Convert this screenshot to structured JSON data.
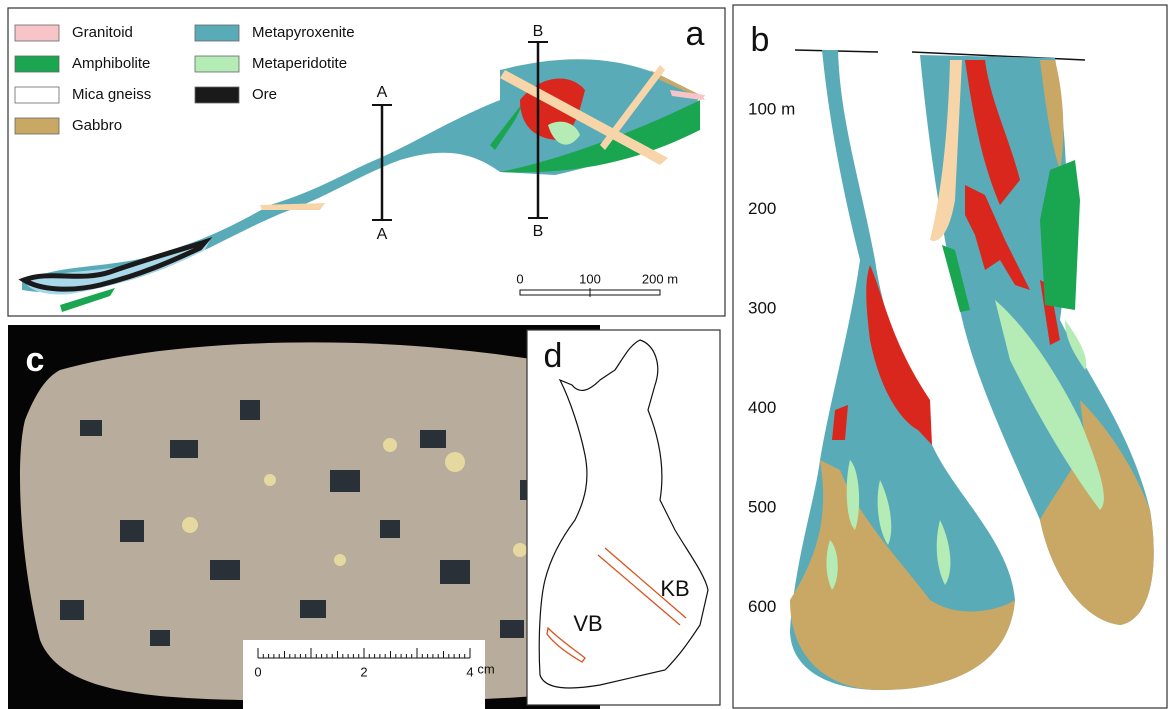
{
  "panel_a": {
    "label": "a",
    "legend": [
      {
        "name": "Granitoid",
        "color": "#f7c5c8"
      },
      {
        "name": "Amphibolite",
        "color": "#1aa650"
      },
      {
        "name": "Mica gneiss",
        "color": "#ffffff"
      },
      {
        "name": "Gabbro",
        "color": "#c9a865"
      },
      {
        "name": "Metapyroxenite",
        "color": "#5aabb8"
      },
      {
        "name": "Metaperidotite",
        "color": "#b5ebb5"
      },
      {
        "name": "Ore",
        "color": "#1a1a1a"
      }
    ],
    "section_labels": [
      "A",
      "A",
      "B",
      "B"
    ],
    "scale_labels": [
      "0",
      "100",
      "200 m"
    ]
  },
  "panel_b": {
    "label": "b",
    "depth_labels": [
      "100 m",
      "200",
      "300",
      "400",
      "500",
      "600"
    ]
  },
  "panel_c": {
    "label": "c",
    "scale_labels": [
      "0",
      "2",
      "4",
      "cm"
    ]
  },
  "panel_d": {
    "label": "d",
    "belt_labels": [
      "VB",
      "KB"
    ]
  }
}
